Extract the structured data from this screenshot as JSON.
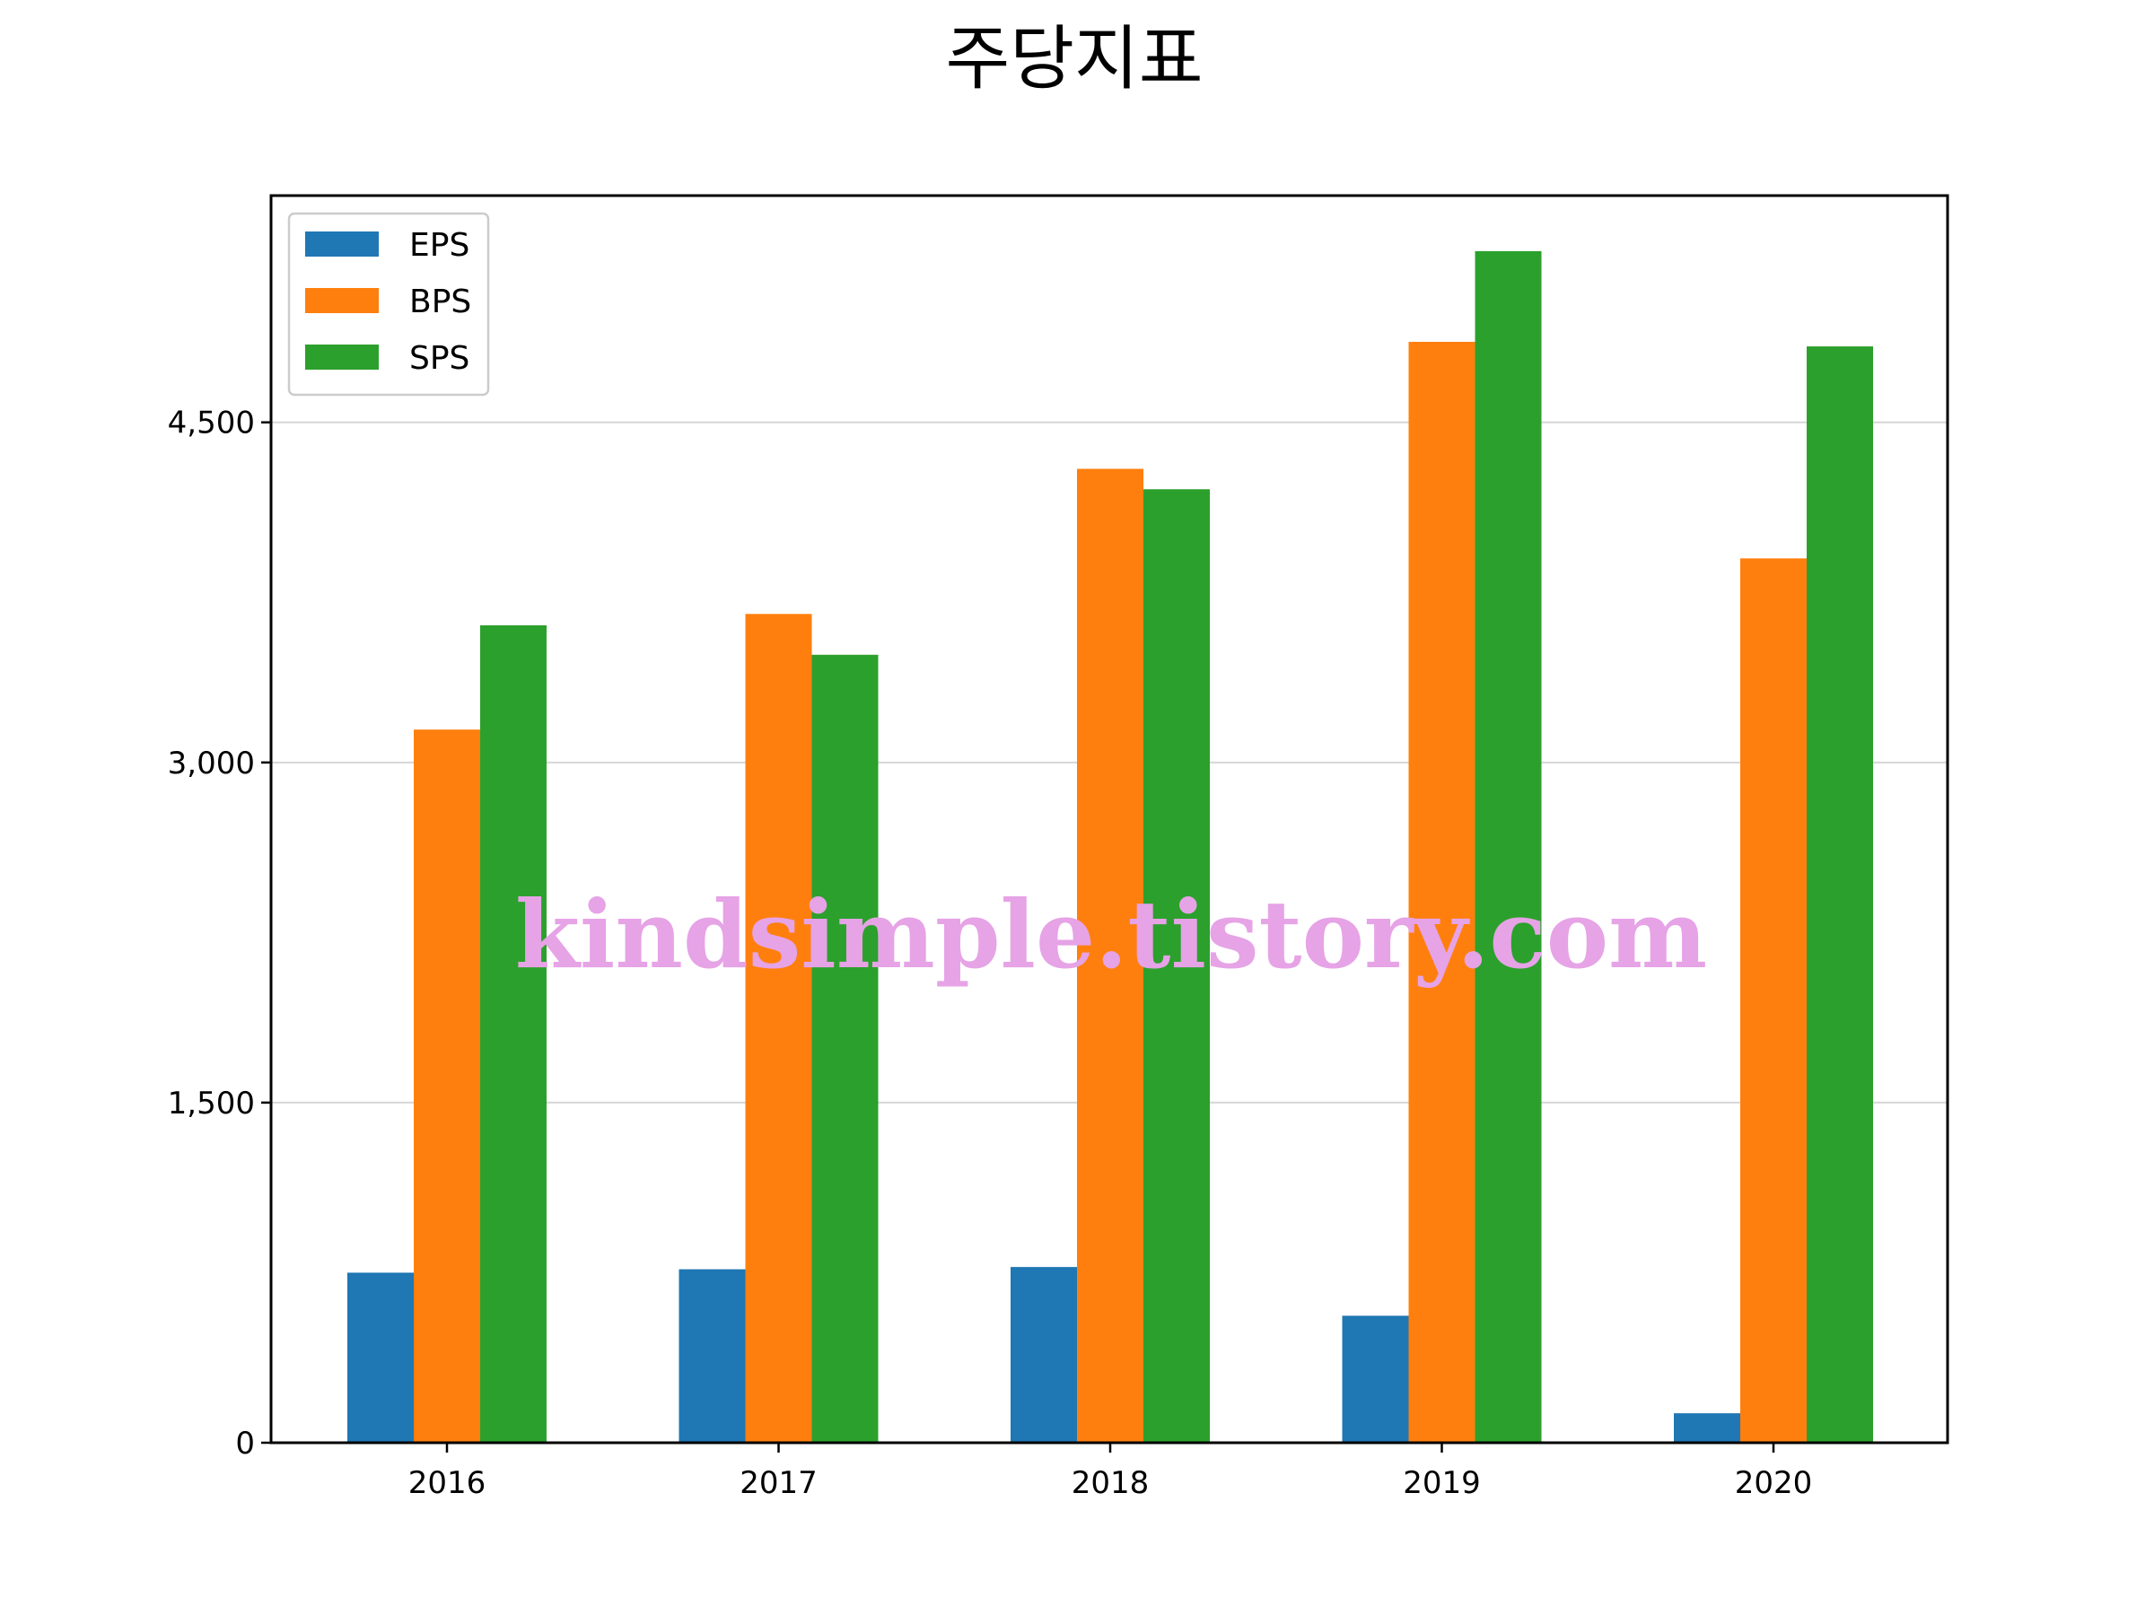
{
  "chart_data": {
    "type": "bar",
    "title": "주당지표",
    "xlabel": "",
    "ylabel": "",
    "categories": [
      "2016",
      "2017",
      "2018",
      "2019",
      "2020"
    ],
    "series": [
      {
        "name": "EPS",
        "color": "#1f77b4",
        "values": [
          750,
          765,
          775,
          560,
          130
        ]
      },
      {
        "name": "BPS",
        "color": "#ff7f0e",
        "values": [
          3145,
          3655,
          4295,
          4855,
          3900
        ]
      },
      {
        "name": "SPS",
        "color": "#2ca02c",
        "values": [
          3605,
          3475,
          4205,
          5255,
          4835
        ]
      }
    ],
    "ylim": [
      0,
      5500
    ],
    "yticks": [
      0,
      1500,
      3000,
      4500
    ],
    "ytick_labels": [
      "0",
      "1,500",
      "3,000",
      "4,500"
    ],
    "grid": "y",
    "legend": "top-left",
    "watermark": "kindsimple.tistory.com"
  }
}
